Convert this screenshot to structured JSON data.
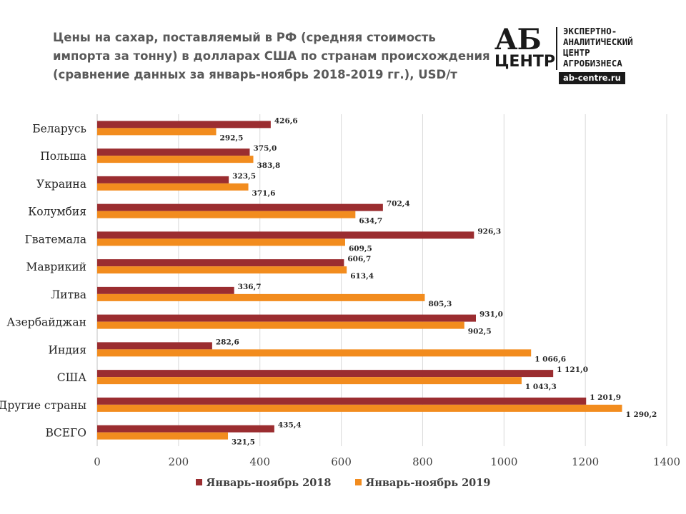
{
  "title_lines": [
    "Цены на сахар, поставляемый в РФ (средняя стоимость",
    "импорта за тонну) в долларах США по странам происхождения",
    "(сравнение данных за январь-ноябрь  2018-2019 гг.), USD/т"
  ],
  "logo": {
    "ab": "АБ",
    "centr": "ЦЕНТР",
    "lines": [
      "ЭКСПЕРТНО-",
      "АНАЛИТИЧЕСКИЙ",
      "ЦЕНТР",
      "АГРОБИЗНЕСА"
    ],
    "site": "ab-centre.ru"
  },
  "colors": {
    "series_2018": "#9B2D30",
    "series_2019": "#F28C1E",
    "grid": "#D9D9D9",
    "axis_text": "#404040"
  },
  "chart_data": {
    "type": "bar",
    "orientation": "horizontal",
    "title": "Цены на сахар, поставляемый в РФ (средняя стоимость импорта за тонну) в долларах США по странам происхождения (сравнение данных за январь-ноябрь 2018-2019 гг.), USD/т",
    "categories": [
      "Беларусь",
      "Польша",
      "Украина",
      "Колумбия",
      "Гватемала",
      "Маврикий",
      "Литва",
      "Азербайджан",
      "Индия",
      "США",
      "Другие страны",
      "ВСЕГО"
    ],
    "series": [
      {
        "name": "Январь-ноябрь 2018",
        "values": [
          426.6,
          375.0,
          323.5,
          702.4,
          926.3,
          606.7,
          336.7,
          931.0,
          282.6,
          1121.0,
          1201.9,
          435.4
        ],
        "labels": [
          "426,6",
          "375,0",
          "323,5",
          "702,4",
          "926,3",
          "606,7",
          "336,7",
          "931,0",
          "282,6",
          "1 121,0",
          "1 201,9",
          "435,4"
        ]
      },
      {
        "name": "Январь-ноябрь 2019",
        "values": [
          292.5,
          383.8,
          371.6,
          634.7,
          609.5,
          613.4,
          805.3,
          902.5,
          1066.6,
          1043.3,
          1290.2,
          321.5
        ],
        "labels": [
          "292,5",
          "383,8",
          "371,6",
          "634,7",
          "609,5",
          "613,4",
          "805,3",
          "902,5",
          "1 066,6",
          "1 043,3",
          "1 290,2",
          "321,5"
        ]
      }
    ],
    "xlim": [
      0,
      1400
    ],
    "xticks": [
      0,
      200,
      400,
      600,
      800,
      1000,
      1200,
      1400
    ],
    "grid": true,
    "legend_position": "bottom"
  }
}
